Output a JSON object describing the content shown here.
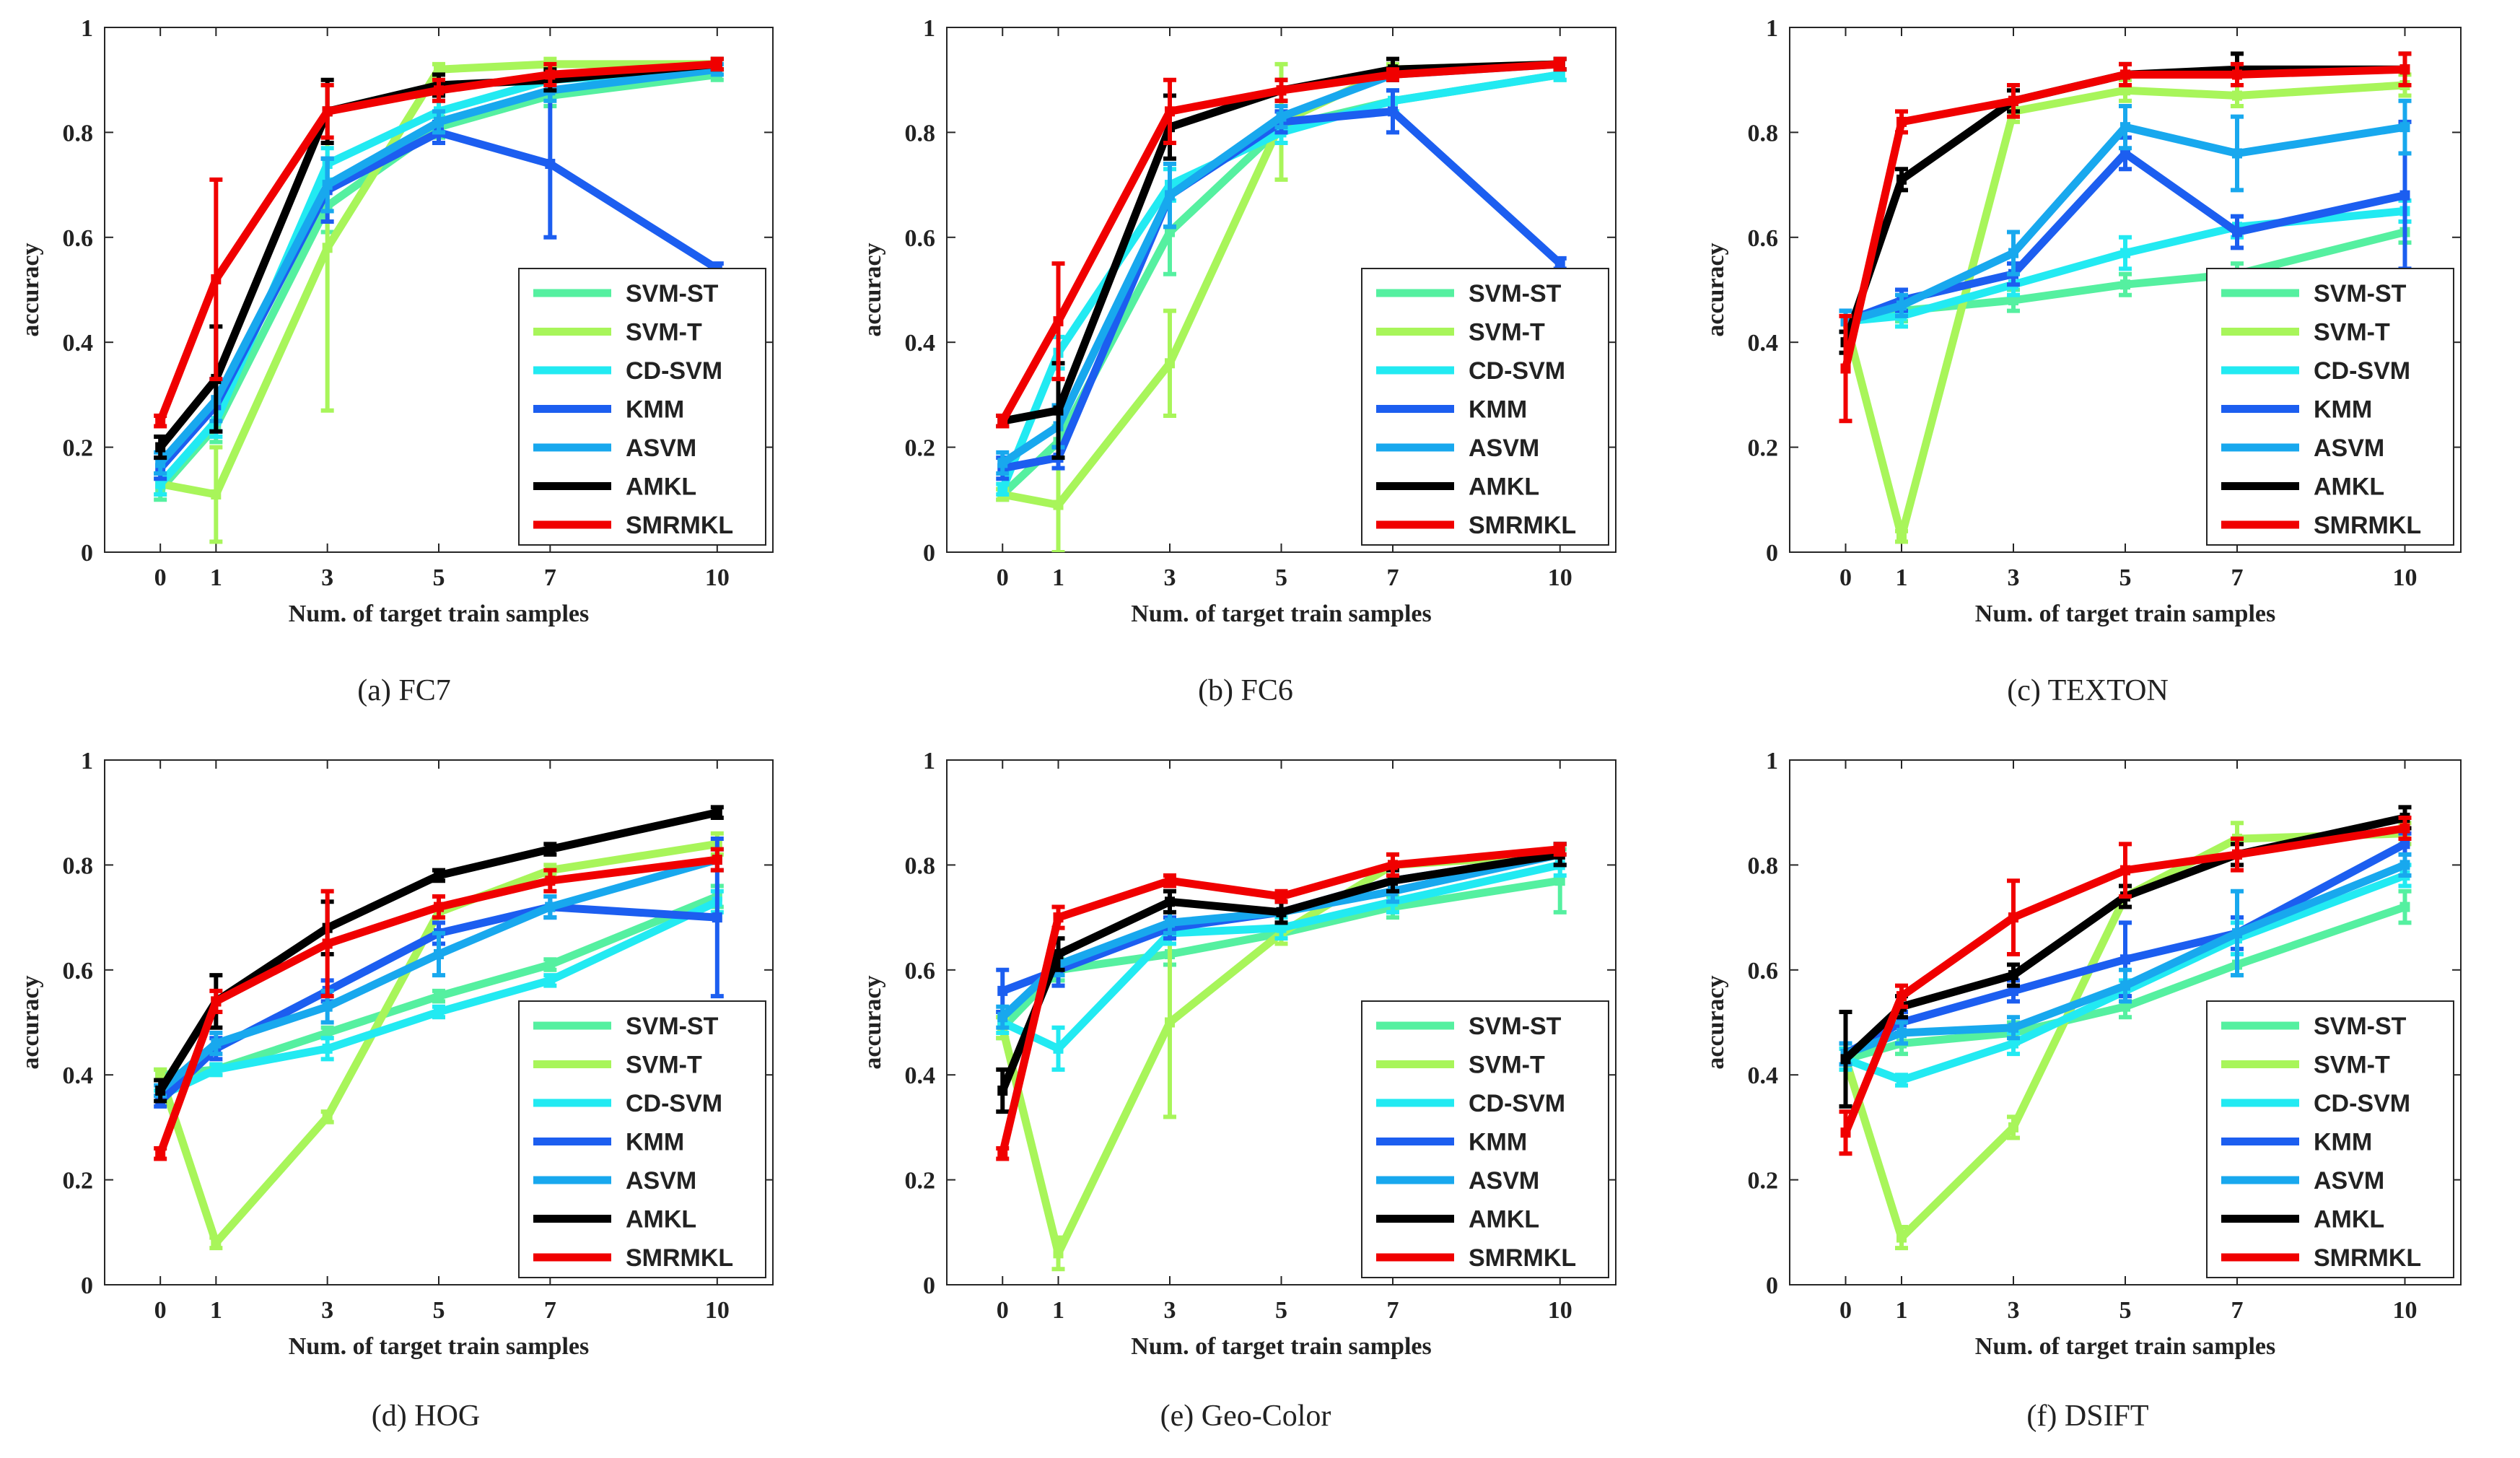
{
  "figure": {
    "series_names": [
      "SVM-ST",
      "SVM-T",
      "CD-SVM",
      "KMM",
      "ASVM",
      "AMKL",
      "SMRMKL"
    ],
    "series_colors": {
      "SVM-ST": "#55f0a0",
      "SVM-T": "#a8f55a",
      "CD-SVM": "#22eaf2",
      "KMM": "#1c5ef0",
      "ASVM": "#18a8ee",
      "AMKL": "#000000",
      "SMRMKL": "#f00000"
    }
  },
  "chart_data": [
    {
      "type": "line",
      "caption": "(a) FC7",
      "xlabel": "Num. of target train samples",
      "ylabel": "accuracy",
      "x": [
        0,
        1,
        3,
        5,
        7,
        10
      ],
      "xticks": [
        "0",
        "1",
        "3",
        "5",
        "7",
        "10"
      ],
      "xlim": [
        -1,
        11
      ],
      "ylim": [
        0,
        1
      ],
      "yticks": [
        "0",
        "0.2",
        "0.4",
        "0.6",
        "0.8",
        "1"
      ],
      "legend_position": "bottom-right",
      "series": [
        {
          "name": "SVM-ST",
          "values": [
            0.12,
            0.24,
            0.66,
            0.81,
            0.87,
            0.91
          ],
          "errors": [
            0.02,
            0.03,
            0.05,
            0.02,
            0.02,
            0.01
          ]
        },
        {
          "name": "SVM-T",
          "values": [
            0.13,
            0.11,
            0.58,
            0.92,
            0.93,
            0.93
          ],
          "errors": [
            0.02,
            0.09,
            0.31,
            0.01,
            0.01,
            0.01
          ]
        },
        {
          "name": "CD-SVM",
          "values": [
            0.13,
            0.25,
            0.74,
            0.84,
            0.9,
            0.92
          ],
          "errors": [
            0.02,
            0.03,
            0.03,
            0.02,
            0.01,
            0.01
          ]
        },
        {
          "name": "KMM",
          "values": [
            0.16,
            0.28,
            0.69,
            0.8,
            0.74,
            0.54
          ],
          "errors": [
            0.02,
            0.05,
            0.06,
            0.02,
            0.14,
            0.01
          ]
        },
        {
          "name": "ASVM",
          "values": [
            0.17,
            0.29,
            0.7,
            0.82,
            0.88,
            0.92
          ],
          "errors": [
            0.02,
            0.04,
            0.05,
            0.02,
            0.02,
            0.01
          ]
        },
        {
          "name": "AMKL",
          "values": [
            0.2,
            0.33,
            0.84,
            0.89,
            0.9,
            0.93
          ],
          "errors": [
            0.02,
            0.1,
            0.06,
            0.02,
            0.02,
            0.01
          ]
        },
        {
          "name": "SMRMKL",
          "values": [
            0.25,
            0.52,
            0.84,
            0.88,
            0.91,
            0.93
          ],
          "errors": [
            0.01,
            0.19,
            0.05,
            0.02,
            0.02,
            0.01
          ]
        }
      ]
    },
    {
      "type": "line",
      "caption": "(b) FC6",
      "xlabel": "Num. of target train samples",
      "ylabel": "accuracy",
      "x": [
        0,
        1,
        3,
        5,
        7,
        10
      ],
      "xticks": [
        "0",
        "1",
        "3",
        "5",
        "7",
        "10"
      ],
      "xlim": [
        -1,
        11
      ],
      "ylim": [
        0,
        1
      ],
      "yticks": [
        "0",
        "0.2",
        "0.4",
        "0.6",
        "0.8",
        "1"
      ],
      "legend_position": "bottom-right",
      "series": [
        {
          "name": "SVM-ST",
          "values": [
            0.11,
            0.21,
            0.61,
            0.81,
            0.86,
            0.91
          ],
          "errors": [
            0.01,
            0.03,
            0.08,
            0.03,
            0.02,
            0.01
          ]
        },
        {
          "name": "SVM-T",
          "values": [
            0.11,
            0.09,
            0.36,
            0.82,
            0.92,
            0.93
          ],
          "errors": [
            0.01,
            0.09,
            0.1,
            0.11,
            0.01,
            0.01
          ]
        },
        {
          "name": "CD-SVM",
          "values": [
            0.12,
            0.38,
            0.7,
            0.8,
            0.86,
            0.91
          ],
          "errors": [
            0.01,
            0.03,
            0.03,
            0.02,
            0.02,
            0.01
          ]
        },
        {
          "name": "KMM",
          "values": [
            0.16,
            0.18,
            0.68,
            0.82,
            0.84,
            0.55
          ],
          "errors": [
            0.02,
            0.02,
            0.06,
            0.02,
            0.04,
            0.01
          ]
        },
        {
          "name": "ASVM",
          "values": [
            0.17,
            0.24,
            0.68,
            0.83,
            0.91,
            0.93
          ],
          "errors": [
            0.02,
            0.04,
            0.06,
            0.02,
            0.01,
            0.01
          ]
        },
        {
          "name": "AMKL",
          "values": [
            0.25,
            0.27,
            0.81,
            0.88,
            0.92,
            0.93
          ],
          "errors": [
            0.01,
            0.09,
            0.06,
            0.02,
            0.02,
            0.01
          ]
        },
        {
          "name": "SMRMKL",
          "values": [
            0.25,
            0.44,
            0.84,
            0.88,
            0.91,
            0.93
          ],
          "errors": [
            0.01,
            0.11,
            0.06,
            0.02,
            0.01,
            0.01
          ]
        }
      ]
    },
    {
      "type": "line",
      "caption": "(c) TEXTON",
      "xlabel": "Num. of target train samples",
      "ylabel": "accuracy",
      "x": [
        0,
        1,
        3,
        5,
        7,
        10
      ],
      "xticks": [
        "0",
        "1",
        "3",
        "5",
        "7",
        "10"
      ],
      "xlim": [
        -1,
        11
      ],
      "ylim": [
        0,
        1
      ],
      "yticks": [
        "0",
        "0.2",
        "0.4",
        "0.6",
        "0.8",
        "1"
      ],
      "legend_position": "bottom-right",
      "series": [
        {
          "name": "SVM-ST",
          "values": [
            0.44,
            0.46,
            0.48,
            0.51,
            0.53,
            0.61
          ],
          "errors": [
            0.02,
            0.02,
            0.02,
            0.02,
            0.02,
            0.02
          ]
        },
        {
          "name": "SVM-T",
          "values": [
            0.44,
            0.03,
            0.84,
            0.88,
            0.87,
            0.89
          ],
          "errors": [
            0.02,
            0.01,
            0.02,
            0.02,
            0.02,
            0.02
          ]
        },
        {
          "name": "CD-SVM",
          "values": [
            0.44,
            0.45,
            0.51,
            0.57,
            0.62,
            0.65
          ],
          "errors": [
            0.02,
            0.02,
            0.02,
            0.03,
            0.02,
            0.02
          ]
        },
        {
          "name": "KMM",
          "values": [
            0.44,
            0.48,
            0.53,
            0.76,
            0.61,
            0.68
          ],
          "errors": [
            0.02,
            0.02,
            0.02,
            0.03,
            0.03,
            0.14
          ]
        },
        {
          "name": "ASVM",
          "values": [
            0.44,
            0.47,
            0.57,
            0.81,
            0.76,
            0.81
          ],
          "errors": [
            0.02,
            0.02,
            0.04,
            0.04,
            0.07,
            0.05
          ]
        },
        {
          "name": "AMKL",
          "values": [
            0.4,
            0.71,
            0.86,
            0.91,
            0.92,
            0.92
          ],
          "errors": [
            0.02,
            0.02,
            0.02,
            0.02,
            0.03,
            0.03
          ]
        },
        {
          "name": "SMRMKL",
          "values": [
            0.35,
            0.82,
            0.86,
            0.91,
            0.91,
            0.92
          ],
          "errors": [
            0.1,
            0.02,
            0.03,
            0.02,
            0.02,
            0.03
          ]
        }
      ]
    },
    {
      "type": "line",
      "caption": "(d) HOG",
      "xlabel": "Num. of target train samples",
      "ylabel": "accuracy",
      "x": [
        0,
        1,
        3,
        5,
        7,
        10
      ],
      "xticks": [
        "0",
        "1",
        "3",
        "5",
        "7",
        "10"
      ],
      "xlim": [
        -1,
        11
      ],
      "ylim": [
        0,
        1
      ],
      "yticks": [
        "0",
        "0.2",
        "0.4",
        "0.6",
        "0.8",
        "1"
      ],
      "legend_position": "bottom-right",
      "series": [
        {
          "name": "SVM-ST",
          "values": [
            0.4,
            0.41,
            0.48,
            0.55,
            0.61,
            0.74
          ],
          "errors": [
            0.01,
            0.01,
            0.01,
            0.01,
            0.01,
            0.02
          ]
        },
        {
          "name": "SVM-T",
          "values": [
            0.4,
            0.08,
            0.32,
            0.71,
            0.79,
            0.84
          ],
          "errors": [
            0.01,
            0.01,
            0.01,
            0.01,
            0.01,
            0.02
          ]
        },
        {
          "name": "CD-SVM",
          "values": [
            0.36,
            0.41,
            0.45,
            0.52,
            0.58,
            0.73
          ],
          "errors": [
            0.01,
            0.01,
            0.02,
            0.01,
            0.01,
            0.02
          ]
        },
        {
          "name": "KMM",
          "values": [
            0.35,
            0.45,
            0.56,
            0.67,
            0.72,
            0.7
          ],
          "errors": [
            0.01,
            0.02,
            0.02,
            0.02,
            0.02,
            0.15
          ]
        },
        {
          "name": "ASVM",
          "values": [
            0.37,
            0.46,
            0.53,
            0.63,
            0.72,
            0.81
          ],
          "errors": [
            0.01,
            0.02,
            0.03,
            0.04,
            0.02,
            0.02
          ]
        },
        {
          "name": "AMKL",
          "values": [
            0.37,
            0.54,
            0.68,
            0.78,
            0.83,
            0.9
          ],
          "errors": [
            0.02,
            0.05,
            0.05,
            0.01,
            0.01,
            0.01
          ]
        },
        {
          "name": "SMRMKL",
          "values": [
            0.25,
            0.54,
            0.65,
            0.72,
            0.77,
            0.81
          ],
          "errors": [
            0.01,
            0.02,
            0.1,
            0.02,
            0.02,
            0.02
          ]
        }
      ]
    },
    {
      "type": "line",
      "caption": "(e) Geo-Color",
      "xlabel": "Num. of target train samples",
      "ylabel": "accuracy",
      "x": [
        0,
        1,
        3,
        5,
        7,
        10
      ],
      "xticks": [
        "0",
        "1",
        "3",
        "5",
        "7",
        "10"
      ],
      "xlim": [
        -1,
        11
      ],
      "ylim": [
        0,
        1
      ],
      "yticks": [
        "0",
        "0.2",
        "0.4",
        "0.6",
        "0.8",
        "1"
      ],
      "legend_position": "bottom-right",
      "series": [
        {
          "name": "SVM-ST",
          "values": [
            0.49,
            0.6,
            0.63,
            0.67,
            0.72,
            0.77
          ],
          "errors": [
            0.02,
            0.02,
            0.02,
            0.02,
            0.02,
            0.06
          ]
        },
        {
          "name": "SVM-T",
          "values": [
            0.49,
            0.06,
            0.5,
            0.67,
            0.8,
            0.82
          ],
          "errors": [
            0.02,
            0.03,
            0.18,
            0.02,
            0.02,
            0.02
          ]
        },
        {
          "name": "CD-SVM",
          "values": [
            0.5,
            0.45,
            0.67,
            0.68,
            0.73,
            0.8
          ],
          "errors": [
            0.02,
            0.04,
            0.02,
            0.02,
            0.02,
            0.02
          ]
        },
        {
          "name": "KMM",
          "values": [
            0.56,
            0.6,
            0.68,
            0.71,
            0.77,
            0.82
          ],
          "errors": [
            0.04,
            0.03,
            0.02,
            0.02,
            0.02,
            0.02
          ]
        },
        {
          "name": "ASVM",
          "values": [
            0.51,
            0.61,
            0.69,
            0.71,
            0.75,
            0.82
          ],
          "errors": [
            0.02,
            0.02,
            0.02,
            0.02,
            0.02,
            0.02
          ]
        },
        {
          "name": "AMKL",
          "values": [
            0.37,
            0.63,
            0.73,
            0.71,
            0.77,
            0.82
          ],
          "errors": [
            0.04,
            0.03,
            0.02,
            0.02,
            0.02,
            0.02
          ]
        },
        {
          "name": "SMRMKL",
          "values": [
            0.25,
            0.7,
            0.77,
            0.74,
            0.8,
            0.83
          ],
          "errors": [
            0.01,
            0.02,
            0.01,
            0.01,
            0.02,
            0.01
          ]
        }
      ]
    },
    {
      "type": "line",
      "caption": "(f) DSIFT",
      "xlabel": "Num. of target train samples",
      "ylabel": "accuracy",
      "x": [
        0,
        1,
        3,
        5,
        7,
        10
      ],
      "xticks": [
        "0",
        "1",
        "3",
        "5",
        "7",
        "10"
      ],
      "xlim": [
        -1,
        11
      ],
      "ylim": [
        0,
        1
      ],
      "yticks": [
        "0",
        "0.2",
        "0.4",
        "0.6",
        "0.8",
        "1"
      ],
      "legend_position": "bottom-right",
      "series": [
        {
          "name": "SVM-ST",
          "values": [
            0.43,
            0.46,
            0.48,
            0.53,
            0.61,
            0.72
          ],
          "errors": [
            0.02,
            0.02,
            0.02,
            0.02,
            0.02,
            0.03
          ]
        },
        {
          "name": "SVM-T",
          "values": [
            0.43,
            0.09,
            0.3,
            0.74,
            0.85,
            0.86
          ],
          "errors": [
            0.02,
            0.02,
            0.02,
            0.02,
            0.03,
            0.02
          ]
        },
        {
          "name": "CD-SVM",
          "values": [
            0.43,
            0.39,
            0.46,
            0.56,
            0.66,
            0.78
          ],
          "errors": [
            0.02,
            0.01,
            0.02,
            0.02,
            0.03,
            0.02
          ]
        },
        {
          "name": "KMM",
          "values": [
            0.44,
            0.5,
            0.56,
            0.62,
            0.67,
            0.84
          ],
          "errors": [
            0.02,
            0.02,
            0.02,
            0.07,
            0.03,
            0.02
          ]
        },
        {
          "name": "ASVM",
          "values": [
            0.44,
            0.48,
            0.49,
            0.57,
            0.67,
            0.8
          ],
          "errors": [
            0.02,
            0.02,
            0.02,
            0.03,
            0.08,
            0.02
          ]
        },
        {
          "name": "AMKL",
          "values": [
            0.43,
            0.53,
            0.59,
            0.74,
            0.82,
            0.89
          ],
          "errors": [
            0.09,
            0.02,
            0.02,
            0.02,
            0.02,
            0.02
          ]
        },
        {
          "name": "SMRMKL",
          "values": [
            0.29,
            0.55,
            0.7,
            0.79,
            0.82,
            0.87
          ],
          "errors": [
            0.04,
            0.02,
            0.07,
            0.05,
            0.03,
            0.02
          ]
        }
      ]
    }
  ]
}
